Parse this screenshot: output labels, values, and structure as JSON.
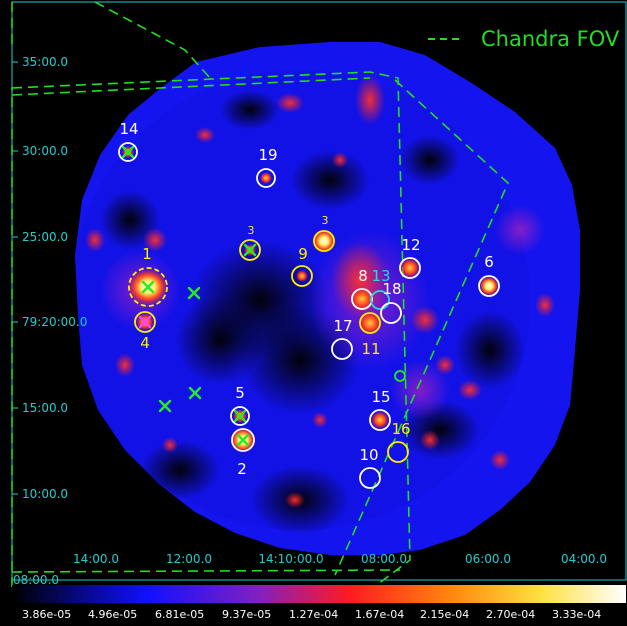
{
  "legend": {
    "label": "Chandra FOV",
    "color": "#22dd22"
  },
  "y_ticks": [
    "35:00.0",
    "30:00.0",
    "25:00.0",
    "79:20:00.0",
    "15:00.0",
    "10:00.0"
  ],
  "x_ticks": [
    "14:00.0",
    "12:00.0",
    "14:10:00.0",
    "08:00.0",
    "06:00.0",
    "04:00.0"
  ],
  "x_tick_partial": "08:00.0",
  "colorbar": {
    "labels": [
      "3.86e-05",
      "4.96e-05",
      "6.81e-05",
      "9.37e-05",
      "1.27e-04",
      "1.67e-04",
      "2.15e-04",
      "2.70e-04",
      "3.33e-04"
    ]
  },
  "sources": [
    {
      "id": "1",
      "label_color": "#ffee00"
    },
    {
      "id": "2",
      "label_color": "#ffffff"
    },
    {
      "id": "3",
      "label_color": "#ffee00"
    },
    {
      "id": "3",
      "label_color": "#ffee00"
    },
    {
      "id": "4",
      "label_color": "#ffee00"
    },
    {
      "id": "5",
      "label_color": "#ffffff"
    },
    {
      "id": "6",
      "label_color": "#ffffff"
    },
    {
      "id": "8",
      "label_color": "#ffffff"
    },
    {
      "id": "9",
      "label_color": "#ffee00"
    },
    {
      "id": "10",
      "label_color": "#ffffff"
    },
    {
      "id": "11",
      "label_color": "#ffee00"
    },
    {
      "id": "12",
      "label_color": "#ffffff"
    },
    {
      "id": "13",
      "label_color": "#22dddd"
    },
    {
      "id": "14",
      "label_color": "#ffffff"
    },
    {
      "id": "15",
      "label_color": "#ffffff"
    },
    {
      "id": "16",
      "label_color": "#ffee00"
    },
    {
      "id": "17",
      "label_color": "#ffffff"
    },
    {
      "id": "18",
      "label_color": "#ffffff"
    },
    {
      "id": "19",
      "label_color": "#ffffff"
    }
  ],
  "colors": {
    "axis": "#22cccc",
    "fov": "#22dd22",
    "x_mark": "#22ee22"
  }
}
